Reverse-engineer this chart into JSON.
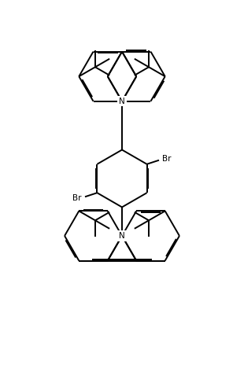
{
  "background_color": "#ffffff",
  "line_color": "#000000",
  "lw": 1.4,
  "dbo": 0.055,
  "figsize": [
    3.1,
    4.68
  ],
  "dpi": 100,
  "xlim": [
    -5.5,
    5.5
  ],
  "ylim": [
    -7.5,
    7.0
  ]
}
